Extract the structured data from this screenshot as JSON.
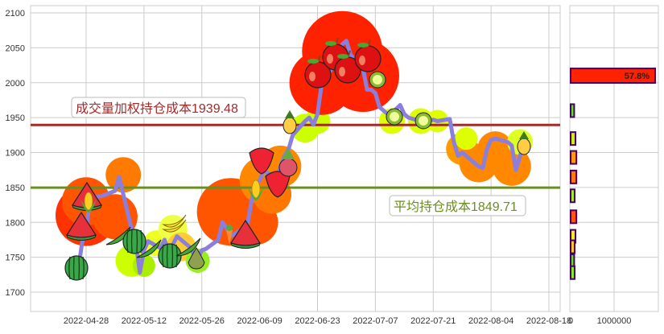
{
  "chart_data": [
    {
      "type": "line",
      "title": "",
      "xlabel": "",
      "ylabel": "",
      "ylim": [
        1670,
        2110
      ],
      "yticks": [
        1700,
        1750,
        1800,
        1850,
        1900,
        1950,
        2000,
        2050,
        2100
      ],
      "xticks": [
        "2022-04-28",
        "2022-05-12",
        "2022-05-26",
        "2022-06-09",
        "2022-06-23",
        "2022-07-07",
        "2022-07-21",
        "2022-08-04",
        "2022-08-18"
      ],
      "grid": true,
      "series": [
        {
          "name": "price",
          "color": "#8a7fdc",
          "points": [
            {
              "x": "2022-04-26",
              "y": 1728
            },
            {
              "x": "2022-04-27",
              "y": 1770
            },
            {
              "x": "2022-04-28",
              "y": 1790
            },
            {
              "x": "2022-04-29",
              "y": 1835
            },
            {
              "x": "2022-05-02",
              "y": 1838
            },
            {
              "x": "2022-05-05",
              "y": 1845
            },
            {
              "x": "2022-05-06",
              "y": 1865
            },
            {
              "x": "2022-05-09",
              "y": 1790
            },
            {
              "x": "2022-05-10",
              "y": 1773
            },
            {
              "x": "2022-05-11",
              "y": 1728
            },
            {
              "x": "2022-05-12",
              "y": 1760
            },
            {
              "x": "2022-05-13",
              "y": 1773
            },
            {
              "x": "2022-05-16",
              "y": 1763
            },
            {
              "x": "2022-05-17",
              "y": 1775
            },
            {
              "x": "2022-05-18",
              "y": 1758
            },
            {
              "x": "2022-05-19",
              "y": 1768
            },
            {
              "x": "2022-05-20",
              "y": 1780
            },
            {
              "x": "2022-05-23",
              "y": 1765
            },
            {
              "x": "2022-05-24",
              "y": 1755
            },
            {
              "x": "2022-05-25",
              "y": 1748
            },
            {
              "x": "2022-05-26",
              "y": 1760
            },
            {
              "x": "2022-05-27",
              "y": 1762
            },
            {
              "x": "2022-05-30",
              "y": 1775
            },
            {
              "x": "2022-05-31",
              "y": 1800
            },
            {
              "x": "2022-06-01",
              "y": 1792
            },
            {
              "x": "2022-06-02",
              "y": 1780
            },
            {
              "x": "2022-06-06",
              "y": 1795
            },
            {
              "x": "2022-06-07",
              "y": 1830
            },
            {
              "x": "2022-06-08",
              "y": 1855
            },
            {
              "x": "2022-06-09",
              "y": 1860
            },
            {
              "x": "2022-06-10",
              "y": 1875
            },
            {
              "x": "2022-06-13",
              "y": 1860
            },
            {
              "x": "2022-06-14",
              "y": 1880
            },
            {
              "x": "2022-06-15",
              "y": 1895
            },
            {
              "x": "2022-06-16",
              "y": 1905
            },
            {
              "x": "2022-06-17",
              "y": 1925
            },
            {
              "x": "2022-06-20",
              "y": 1945
            },
            {
              "x": "2022-06-21",
              "y": 1950
            },
            {
              "x": "2022-06-22",
              "y": 1940
            },
            {
              "x": "2022-06-23",
              "y": 1955
            },
            {
              "x": "2022-06-24",
              "y": 1998
            },
            {
              "x": "2022-06-27",
              "y": 2025
            },
            {
              "x": "2022-06-28",
              "y": 2045
            },
            {
              "x": "2022-06-29",
              "y": 2055
            },
            {
              "x": "2022-06-30",
              "y": 2060
            },
            {
              "x": "2022-07-01",
              "y": 2040
            },
            {
              "x": "2022-07-04",
              "y": 2020
            },
            {
              "x": "2022-07-05",
              "y": 1990
            },
            {
              "x": "2022-07-06",
              "y": 1990
            },
            {
              "x": "2022-07-07",
              "y": 1985
            },
            {
              "x": "2022-07-08",
              "y": 1965
            },
            {
              "x": "2022-07-11",
              "y": 1950
            },
            {
              "x": "2022-07-12",
              "y": 1962
            },
            {
              "x": "2022-07-13",
              "y": 1968
            },
            {
              "x": "2022-07-14",
              "y": 1955
            },
            {
              "x": "2022-07-15",
              "y": 1950
            },
            {
              "x": "2022-07-18",
              "y": 1945
            },
            {
              "x": "2022-07-19",
              "y": 1948
            },
            {
              "x": "2022-07-20",
              "y": 1945
            },
            {
              "x": "2022-07-21",
              "y": 1947
            },
            {
              "x": "2022-07-22",
              "y": 1945
            },
            {
              "x": "2022-07-25",
              "y": 1948
            },
            {
              "x": "2022-07-26",
              "y": 1915
            },
            {
              "x": "2022-07-27",
              "y": 1895
            },
            {
              "x": "2022-07-28",
              "y": 1900
            },
            {
              "x": "2022-07-29",
              "y": 1895
            },
            {
              "x": "2022-08-01",
              "y": 1880
            },
            {
              "x": "2022-08-02",
              "y": 1878
            },
            {
              "x": "2022-08-03",
              "y": 1905
            },
            {
              "x": "2022-08-04",
              "y": 1918
            },
            {
              "x": "2022-08-05",
              "y": 1920
            },
            {
              "x": "2022-08-08",
              "y": 1915
            },
            {
              "x": "2022-08-09",
              "y": 1910
            },
            {
              "x": "2022-08-10",
              "y": 1875
            },
            {
              "x": "2022-08-11",
              "y": 1895
            },
            {
              "x": "2022-08-12",
              "y": 1915
            }
          ]
        }
      ],
      "reference_lines": [
        {
          "name": "vwap_cost",
          "label": "成交量加权持仓成本1939.48",
          "value": 1939.48,
          "color": "#a52a2a"
        },
        {
          "name": "avg_cost",
          "label": "平均持仓成本1849.71",
          "value": 1849.71,
          "color": "#6b8e23"
        }
      ],
      "annotations": [
        "成交量加权持仓成本1939.48",
        "平均持仓成本1849.71"
      ]
    },
    {
      "type": "bar",
      "orientation": "horizontal",
      "xticks": [
        "0",
        "1000000"
      ],
      "xlim": [
        0,
        1200000
      ],
      "bar_label": "57.8%",
      "bars": [
        {
          "price_level": 2010,
          "value": 1930000,
          "color": "#ff2200",
          "label": "57.8%"
        },
        {
          "price_level": 1960,
          "value": 80000,
          "color": "#66dd22"
        },
        {
          "price_level": 1920,
          "value": 110000,
          "color": "#ccee11"
        },
        {
          "price_level": 1893,
          "value": 130000,
          "color": "#ff9911"
        },
        {
          "price_level": 1865,
          "value": 130000,
          "color": "#ff7711"
        },
        {
          "price_level": 1838,
          "value": 90000,
          "color": "#aaee22"
        },
        {
          "price_level": 1808,
          "value": 130000,
          "color": "#ff5511"
        },
        {
          "price_level": 1780,
          "value": 110000,
          "color": "#eeee22"
        },
        {
          "price_level": 1765,
          "value": 90000,
          "color": "#ffcc22"
        },
        {
          "price_level": 1745,
          "value": 80000,
          "color": "#66dd22"
        },
        {
          "price_level": 1728,
          "value": 90000,
          "color": "#88ee22"
        }
      ]
    }
  ]
}
